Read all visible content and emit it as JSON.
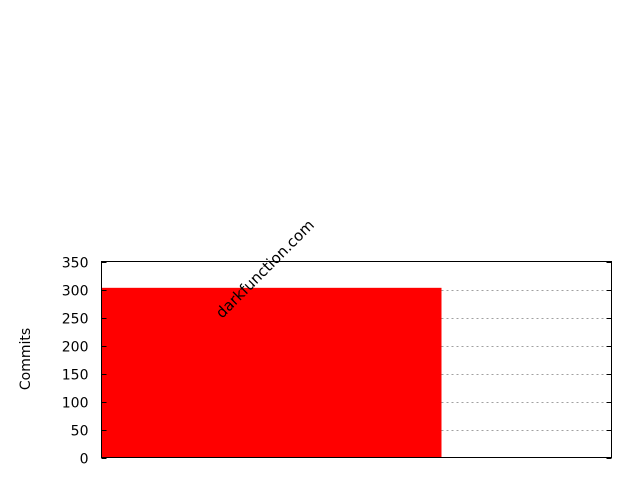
{
  "chart_data": {
    "type": "bar",
    "categories": [
      "darkfunction.com"
    ],
    "values": [
      303
    ],
    "title": "",
    "xlabel": "",
    "ylabel": "Commits",
    "ylim": [
      0,
      350
    ],
    "yticks": [
      0,
      50,
      100,
      150,
      200,
      250,
      300,
      350
    ],
    "grid": true,
    "bar_color": "#ff0000"
  }
}
